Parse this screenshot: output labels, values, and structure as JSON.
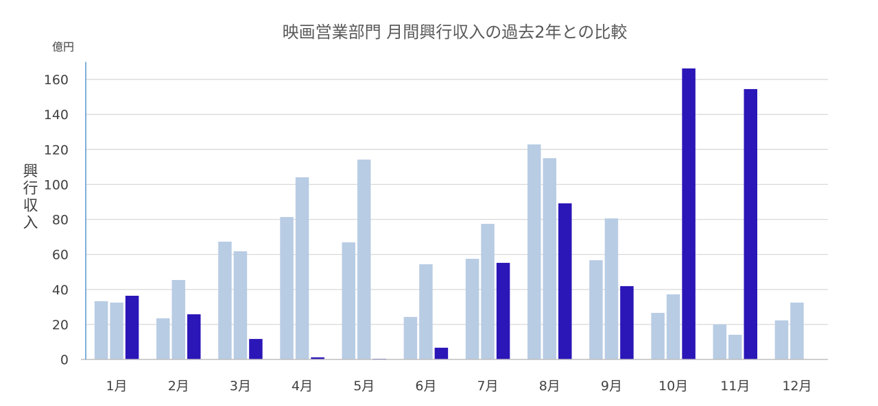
{
  "chart_data": {
    "type": "bar",
    "title": "映画営業部門 月間興行収入の過去2年との比較",
    "ylabel": "興行収入",
    "yunit": "億円",
    "xlabel": "",
    "categories": [
      "1月",
      "2月",
      "3月",
      "4月",
      "5月",
      "6月",
      "7月",
      "8月",
      "9月",
      "10月",
      "11月",
      "12月"
    ],
    "series": [
      {
        "color": "#b8cce4",
        "values": [
          33.3,
          23.5,
          67.3,
          81.4,
          66.9,
          24.3,
          57.5,
          122.9,
          56.7,
          26.6,
          20.0,
          22.3
        ]
      },
      {
        "color": "#b8cce4",
        "values": [
          32.5,
          45.4,
          61.8,
          104.1,
          114.2,
          54.4,
          77.5,
          115.0,
          80.6,
          37.2,
          14.1,
          32.5
        ]
      },
      {
        "color": "#2b16b7",
        "values": [
          36.4,
          25.8,
          11.7,
          1.2,
          0.4,
          6.7,
          55.2,
          89.2,
          41.9,
          166.3,
          154.5,
          null
        ]
      }
    ],
    "ylim": [
      0,
      170
    ],
    "yticks": [
      0,
      20,
      40,
      60,
      80,
      100,
      120,
      140,
      160
    ],
    "grid": true,
    "legend": "none",
    "colors": {
      "grid": "#d9d9d9",
      "x_axis": "#bfbfbf",
      "y_axis": "#5b9bd5"
    }
  }
}
